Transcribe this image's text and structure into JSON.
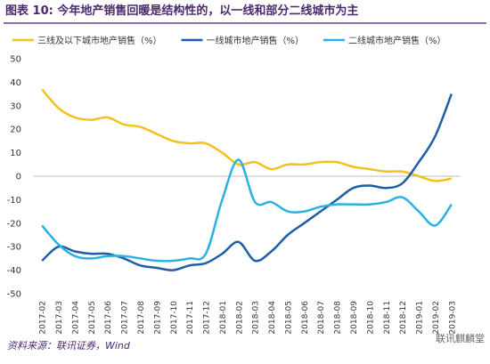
{
  "chart_data": {
    "type": "line",
    "title": "图表 10: 今年地产销售回暖是结构性的，以一线和部分二线城市为主",
    "source": "资料来源：联讯证券，Wind",
    "watermark": "联讯麒麟堂",
    "categories": [
      "2017-02",
      "2017-03",
      "2017-04",
      "2017-05",
      "2017-06",
      "2017-07",
      "2017-08",
      "2017-09",
      "2017-10",
      "2017-11",
      "2017-12",
      "2018-01",
      "2018-02",
      "2018-03",
      "2018-04",
      "2018-05",
      "2018-06",
      "2018-07",
      "2018-08",
      "2018-09",
      "2018-10",
      "2018-11",
      "2018-12",
      "2019-01",
      "2019-02",
      "2019-03"
    ],
    "series": [
      {
        "name": "三线及以下城市地产销售（%）",
        "color": "#f2c21b",
        "values": [
          37,
          29,
          25,
          24,
          25,
          22,
          21,
          18,
          15,
          14,
          14,
          10,
          5,
          6,
          3,
          5,
          5,
          6,
          6,
          4,
          3,
          2,
          2,
          0,
          -2,
          -1
        ]
      },
      {
        "name": "一线城市地产销售（%）",
        "color": "#1c5ea8",
        "values": [
          -36,
          -30,
          -32,
          -33,
          -33,
          -35,
          -38,
          -39,
          -40,
          -38,
          -37,
          -33,
          -28,
          -36,
          -32,
          -25,
          -20,
          -15,
          -10,
          -5,
          -4,
          -5,
          -3,
          6,
          17,
          35
        ]
      },
      {
        "name": "二线城市地产销售（%）",
        "color": "#2cb1e2",
        "values": [
          -21,
          -29,
          -34,
          -35,
          -34,
          -34,
          -35,
          -36,
          -36,
          -35,
          -33,
          -10,
          7,
          -11,
          -11,
          -15,
          -15,
          -13,
          -12,
          -12,
          -12,
          -11,
          -9,
          -15,
          -21,
          -12
        ]
      }
    ],
    "ylim": [
      -50,
      50
    ],
    "yticks": [
      -50,
      -40,
      -30,
      -20,
      -10,
      0,
      10,
      20,
      30,
      40,
      50
    ]
  }
}
